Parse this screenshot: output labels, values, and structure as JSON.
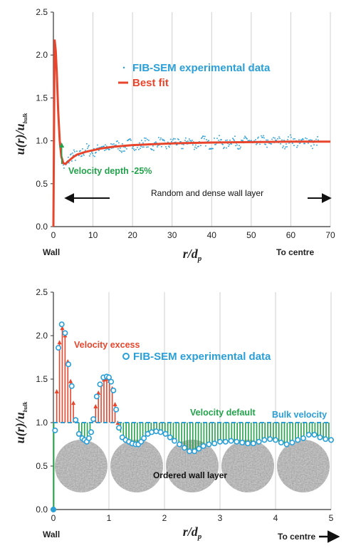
{
  "colors": {
    "experimental": "#2a9fd8",
    "fit": "#e8452c",
    "excess": "#e8452c",
    "deficit": "#22a24a",
    "grid": "#cfcfcf",
    "axis": "#333333",
    "particle": "#b4b4b4"
  },
  "chart_data": [
    {
      "type": "scatter",
      "title": "",
      "ylabel_main": "u(r)/u",
      "ylabel_sub": "bulk",
      "xlabel_main": "r/d",
      "xlabel_sub": "p",
      "xlim": [
        0,
        70
      ],
      "ylim": [
        0,
        2.5
      ],
      "x_ticks": [
        "0",
        "10",
        "20",
        "30",
        "40",
        "50",
        "60",
        "70"
      ],
      "y_ticks": [
        "0.0",
        "0.5",
        "1.0",
        "1.5",
        "2.0",
        "2.5"
      ],
      "grid": "vertical",
      "legend": "top-center",
      "corner_labels": {
        "left": "Wall",
        "right": "To centre"
      },
      "series": [
        {
          "name": "FIB-SEM experimental data",
          "style": "dots"
        },
        {
          "name": "Best fit",
          "style": "line",
          "x": [
            0,
            0.3,
            0.6,
            0.9,
            1.2,
            1.6,
            2.0,
            2.5,
            3,
            4,
            5,
            6,
            8,
            10,
            12,
            15,
            20,
            25,
            30,
            40,
            50,
            60,
            70
          ],
          "y": [
            0.0,
            2.18,
            2.05,
            1.75,
            1.35,
            1.0,
            0.82,
            0.74,
            0.73,
            0.77,
            0.81,
            0.84,
            0.87,
            0.89,
            0.91,
            0.93,
            0.95,
            0.96,
            0.97,
            0.98,
            0.985,
            0.99,
            0.99
          ]
        }
      ],
      "annotations": {
        "velocity_depth": "Velocity depth -25%",
        "wall_layer": "Random and dense wall layer"
      }
    },
    {
      "type": "scatter",
      "title": "",
      "ylabel_main": "u(r)/u",
      "ylabel_sub": "bulk",
      "xlabel_main": "r/d",
      "xlabel_sub": "p",
      "xlim": [
        0,
        5
      ],
      "ylim": [
        0,
        2.5
      ],
      "x_ticks": [
        "0",
        "1",
        "2",
        "3",
        "4",
        "5"
      ],
      "y_ticks": [
        "0.0",
        "0.5",
        "1.0",
        "1.5",
        "2.0",
        "2.5"
      ],
      "grid": "vertical",
      "legend": "right",
      "corner_labels": {
        "left": "Wall",
        "right": "To centre"
      },
      "bulk_velocity": 1.0,
      "series": [
        {
          "name": "FIB-SEM experimental data",
          "style": "open-circles",
          "x": [
            0.0,
            0.03,
            0.09,
            0.15,
            0.21,
            0.27,
            0.33,
            0.4,
            0.46,
            0.52,
            0.56,
            0.6,
            0.64,
            0.68,
            0.72,
            0.78,
            0.84,
            0.9,
            0.96,
            1.0,
            1.04,
            1.08,
            1.13,
            1.18,
            1.24,
            1.3,
            1.36,
            1.42,
            1.48,
            1.53,
            1.58,
            1.63,
            1.7,
            1.77,
            1.85,
            1.93,
            2.02,
            2.1,
            2.18,
            2.27,
            2.36,
            2.45,
            2.54,
            2.62,
            2.7,
            2.8,
            2.9,
            3.0,
            3.1,
            3.2,
            3.3,
            3.4,
            3.5,
            3.6,
            3.7,
            3.8,
            3.9,
            4.0,
            4.1,
            4.2,
            4.3,
            4.4,
            4.5,
            4.6,
            4.7,
            4.8,
            4.9,
            5.0
          ],
          "y": [
            0.0,
            0.91,
            1.86,
            2.13,
            2.03,
            1.67,
            1.42,
            1.03,
            0.87,
            0.82,
            0.8,
            0.78,
            0.82,
            0.89,
            1.04,
            1.3,
            1.44,
            1.52,
            1.53,
            1.52,
            1.47,
            1.37,
            1.15,
            0.94,
            0.83,
            0.8,
            0.78,
            0.76,
            0.75,
            0.75,
            0.78,
            0.82,
            0.87,
            0.89,
            0.9,
            0.89,
            0.87,
            0.83,
            0.79,
            0.75,
            0.71,
            0.67,
            0.67,
            0.7,
            0.73,
            0.75,
            0.76,
            0.78,
            0.78,
            0.79,
            0.78,
            0.77,
            0.76,
            0.76,
            0.78,
            0.8,
            0.81,
            0.8,
            0.77,
            0.75,
            0.77,
            0.8,
            0.82,
            0.86,
            0.86,
            0.83,
            0.81,
            0.8
          ]
        },
        {
          "name": "Bulk velocity",
          "style": "dashed",
          "y": 1.0
        }
      ],
      "annotations": {
        "velocity_excess": "Velocity excess",
        "velocity_default": "Velocity default",
        "wall_layer": "Ordered wall layer"
      }
    }
  ]
}
